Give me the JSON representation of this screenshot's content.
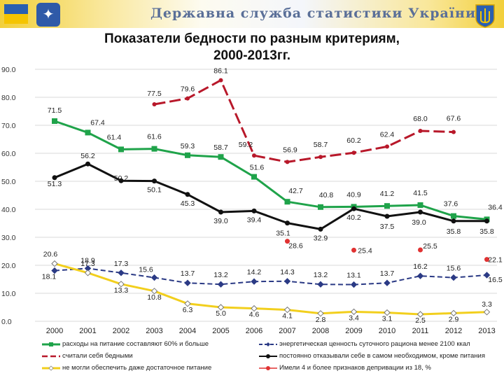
{
  "header": {
    "agency": "Державна служба статистики України",
    "title_line1": "Показатели бедности по разным критериям,",
    "title_line2": "2000-2013гг."
  },
  "chart_data": {
    "type": "line",
    "title": "Показатели бедности по разным критериям, 2000-2013гг.",
    "categories": [
      "2000",
      "2001",
      "2002",
      "2003",
      "2004",
      "2005",
      "2006",
      "2007",
      "2008",
      "2009",
      "2010",
      "2011",
      "2012",
      "2013"
    ],
    "y_ticks": [
      "0.0",
      "10.0",
      "20.0",
      "30.0",
      "40.0",
      "50.0",
      "60.0",
      "70.0",
      "80.0",
      "90.0"
    ],
    "ylim": [
      0,
      90
    ],
    "series": [
      {
        "name": "расходы на питание составляют 60% и больше",
        "color": "#1fa34a",
        "dash": "",
        "marker": "square",
        "values": [
          71.5,
          67.4,
          61.4,
          61.6,
          59.3,
          58.7,
          51.6,
          42.7,
          40.8,
          40.9,
          41.2,
          41.5,
          37.6,
          36.4
        ],
        "labels": [
          "71.5",
          "67.4",
          "61.4",
          "61.6",
          "59.3",
          "58.7",
          "51.6",
          "42.7",
          "40.8",
          "40.9",
          "41.2",
          "41.5",
          "37.6",
          "36.4"
        ]
      },
      {
        "name": "энергетическая ценность суточного рациона менее 2100 ккал",
        "color": "#2b3a85",
        "dash": "7,4",
        "marker": "diamond",
        "values": [
          18.1,
          18.9,
          17.3,
          15.6,
          13.7,
          13.2,
          14.2,
          14.3,
          13.2,
          13.1,
          13.7,
          16.2,
          15.6,
          16.5
        ],
        "labels": [
          "18.1",
          "18.9",
          "17.3",
          "15.6",
          "13.7",
          "13.2",
          "14.2",
          "14.3",
          "13.2",
          "13.1",
          "13.7",
          "16.2",
          "15.6",
          "16.5"
        ]
      },
      {
        "name": "считали себя бедными",
        "color": "#b8182a",
        "dash": "16,6",
        "marker": "circle",
        "values": [
          null,
          null,
          null,
          77.5,
          79.6,
          86.1,
          59.2,
          56.9,
          58.7,
          60.2,
          62.4,
          68.0,
          67.6,
          null
        ],
        "labels": [
          "",
          "",
          "",
          "77.5",
          "79.6",
          "86.1",
          "59.2",
          "56.9",
          "58.7",
          "60.2",
          "62.4",
          "68.0",
          "67.6",
          ""
        ]
      },
      {
        "name": "постоянно отказывали себе в самом необходимом, кроме питания",
        "color": "#111111",
        "dash": "",
        "marker": "circle",
        "values": [
          51.3,
          56.2,
          50.2,
          50.1,
          45.3,
          39.0,
          39.4,
          35.1,
          32.9,
          40.2,
          37.5,
          39.0,
          35.8,
          35.8
        ],
        "labels": [
          "51.3",
          "56.2",
          "50.2",
          "50.1",
          "45.3",
          "39.0",
          "39.4",
          "35.1",
          "32.9",
          "40.2",
          "37.5",
          "39.0",
          "35.8",
          "35.8"
        ]
      },
      {
        "name": "не могли обеспечить даже достаточное питание",
        "color": "#f2cf1d",
        "dash": "",
        "marker": "diamond",
        "values": [
          20.6,
          17.3,
          13.3,
          10.8,
          6.3,
          5.0,
          4.6,
          4.1,
          2.8,
          3.4,
          3.1,
          2.5,
          2.9,
          3.3
        ],
        "labels": [
          "20.6",
          "17.3",
          "13.3",
          "10.8",
          "6.3",
          "5.0",
          "4.6",
          "4.1",
          "2.8",
          "3.4",
          "3.1",
          "2.5",
          "2.9",
          "3.3"
        ]
      },
      {
        "name": "Имели 4 и более признаков депривации из 18, %",
        "color": "#e03232",
        "dash": "",
        "marker": "circle",
        "values": [
          null,
          null,
          null,
          null,
          null,
          null,
          null,
          28.6,
          null,
          25.4,
          null,
          25.5,
          null,
          22.1
        ],
        "labels": [
          "",
          "",
          "",
          "",
          "",
          "",
          "",
          "28.6",
          "",
          "25.4",
          "",
          "25.5",
          "",
          "22.1"
        ]
      }
    ]
  },
  "legend_items": [
    "расходы на питание составляют 60% и больше",
    "энергетическая ценность суточного рациона менее 2100 ккал",
    "считали себя бедными",
    "постоянно отказывали себе в самом необходимом, кроме питания",
    "не могли обеспечить даже достаточное питание",
    "Имели 4 и более признаков депривации из 18, %"
  ]
}
